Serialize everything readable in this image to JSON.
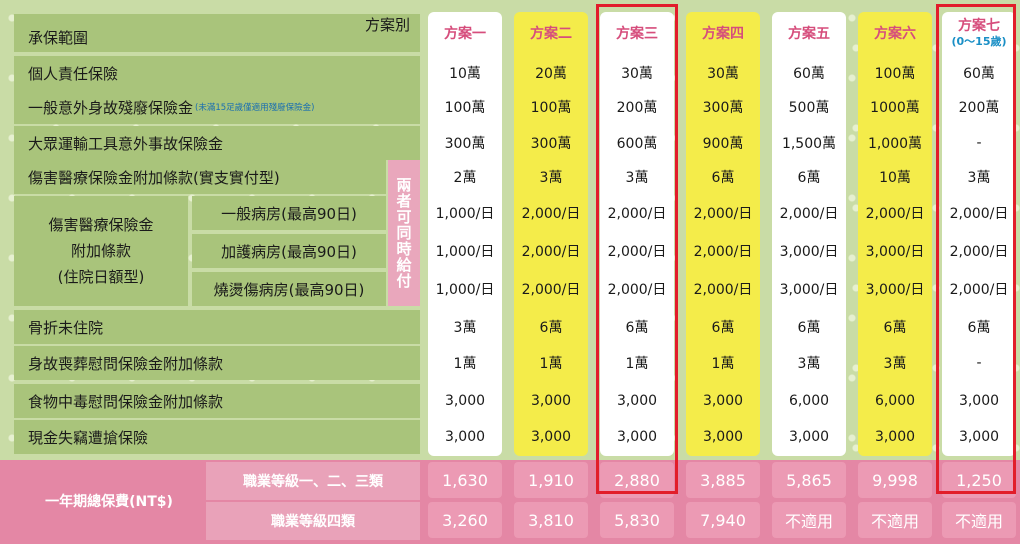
{
  "header": {
    "left_title": "承保範圍",
    "right_title": "方案別"
  },
  "plans": [
    {
      "name": "方案一",
      "sub": "",
      "bg": "white"
    },
    {
      "name": "方案二",
      "sub": "",
      "bg": "yellow"
    },
    {
      "name": "方案三",
      "sub": "",
      "bg": "white"
    },
    {
      "name": "方案四",
      "sub": "",
      "bg": "yellow"
    },
    {
      "name": "方案五",
      "sub": "",
      "bg": "white"
    },
    {
      "name": "方案六",
      "sub": "",
      "bg": "yellow"
    },
    {
      "name": "方案七",
      "sub": "(0～15歲)",
      "bg": "white"
    }
  ],
  "rows": [
    {
      "label": "個人責任保險",
      "note": "",
      "values": [
        "10萬",
        "20萬",
        "30萬",
        "30萬",
        "60萬",
        "100萬",
        "60萬"
      ]
    },
    {
      "label": "一般意外身故殘廢保險金",
      "note": "(未滿15足歲僅適用殘廢保險金)",
      "values": [
        "100萬",
        "100萬",
        "200萬",
        "300萬",
        "500萬",
        "1000萬",
        "200萬"
      ]
    },
    {
      "label": "大眾運輸工具意外事故保險金",
      "note": "",
      "values": [
        "300萬",
        "300萬",
        "600萬",
        "900萬",
        "1,500萬",
        "1,000萬",
        "-"
      ]
    },
    {
      "label": "傷害醫療保險金附加條款(實支實付型)",
      "note": "",
      "values": [
        "2萬",
        "3萬",
        "3萬",
        "6萬",
        "6萬",
        "10萬",
        "3萬"
      ]
    },
    {
      "label": "一般病房(最高90日)",
      "note": "",
      "values": [
        "1,000/日",
        "2,000/日",
        "2,000/日",
        "2,000/日",
        "2,000/日",
        "2,000/日",
        "2,000/日"
      ]
    },
    {
      "label": "加護病房(最高90日)",
      "note": "",
      "values": [
        "1,000/日",
        "2,000/日",
        "2,000/日",
        "2,000/日",
        "3,000/日",
        "3,000/日",
        "2,000/日"
      ]
    },
    {
      "label": "燒燙傷病房(最高90日)",
      "note": "",
      "values": [
        "1,000/日",
        "2,000/日",
        "2,000/日",
        "2,000/日",
        "3,000/日",
        "3,000/日",
        "2,000/日"
      ]
    },
    {
      "label": "骨折未住院",
      "note": "",
      "values": [
        "3萬",
        "6萬",
        "6萬",
        "6萬",
        "6萬",
        "6萬",
        "6萬"
      ]
    },
    {
      "label": "身故喪葬慰問保險金附加條款",
      "note": "",
      "values": [
        "1萬",
        "1萬",
        "1萬",
        "1萬",
        "3萬",
        "3萬",
        "-"
      ]
    },
    {
      "label": "食物中毒慰問保險金附加條款",
      "note": "",
      "values": [
        "3,000",
        "3,000",
        "3,000",
        "3,000",
        "6,000",
        "6,000",
        "3,000"
      ]
    },
    {
      "label": "現金失竊遭搶保險",
      "note": "",
      "values": [
        "3,000",
        "3,000",
        "3,000",
        "3,000",
        "3,000",
        "3,000",
        "3,000"
      ]
    }
  ],
  "group_label": "傷害醫療保險金附加條款(住院日額型)",
  "group_label_lines": [
    "傷害醫療保險金",
    "附加條款",
    "(住院日額型)"
  ],
  "side_note": "兩者可同時給付",
  "premium": {
    "title": "一年期總保費(NT$)",
    "rows": [
      {
        "label": "職業等級一、二、三類",
        "values": [
          "1,630",
          "1,910",
          "2,880",
          "3,885",
          "5,865",
          "9,998",
          "1,250"
        ]
      },
      {
        "label": "職業等級四類",
        "values": [
          "3,260",
          "3,810",
          "5,830",
          "7,940",
          "不適用",
          "不適用",
          "不適用"
        ]
      }
    ]
  },
  "colors": {
    "header_pink": "#d64d7c",
    "accent_red": "#e21d2a",
    "yellow": "#f4ec4a",
    "green": "#a9c47b",
    "pink": "#e487a5"
  }
}
